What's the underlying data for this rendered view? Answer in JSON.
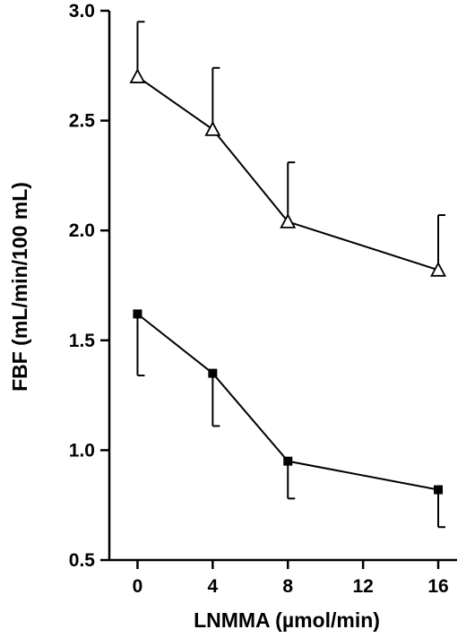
{
  "chart_data": {
    "type": "line",
    "xlabel": "LNMMA (µmol/min)",
    "ylabel": "FBF (mL/min/100 mL)",
    "xlim": [
      -1.5,
      17
    ],
    "ylim": [
      0.5,
      3.0
    ],
    "x_ticks": [
      0,
      4,
      8,
      12,
      16
    ],
    "y_ticks": [
      0.5,
      1.0,
      1.5,
      2.0,
      2.5,
      3.0
    ],
    "x_tick_labels": [
      "0",
      "4",
      "8",
      "12",
      "16"
    ],
    "y_tick_labels": [
      "0.5",
      "1.0",
      "1.5",
      "2.0",
      "2.5",
      "3.0"
    ],
    "grid": false,
    "series": [
      {
        "marker": "open-triangle",
        "x": [
          0,
          4,
          8,
          16
        ],
        "y": [
          2.7,
          2.46,
          2.04,
          1.82
        ],
        "error_plus": [
          0.25,
          0.28,
          0.27,
          0.25
        ],
        "error_direction": "up"
      },
      {
        "marker": "filled-square",
        "x": [
          0,
          4,
          8,
          16
        ],
        "y": [
          1.62,
          1.35,
          0.95,
          0.82
        ],
        "error_minus": [
          0.28,
          0.24,
          0.17,
          0.17
        ],
        "error_direction": "down"
      }
    ]
  }
}
